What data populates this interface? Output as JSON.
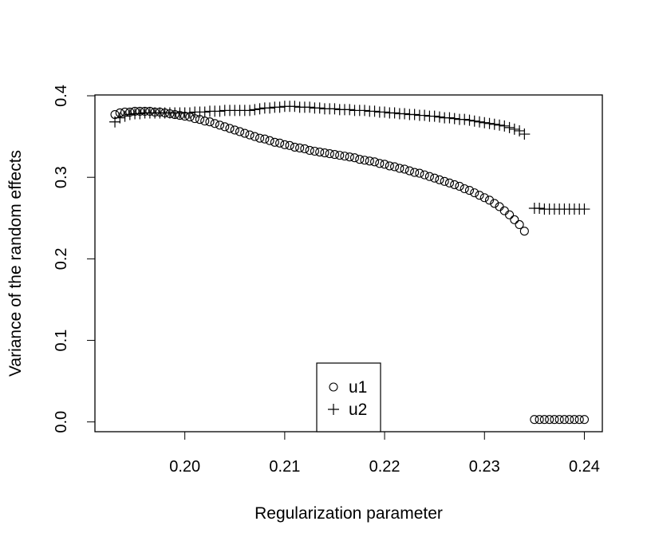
{
  "chart_data": {
    "type": "scatter",
    "title": "",
    "xlabel": "Regularization parameter",
    "ylabel": "Variance of the random effects",
    "xlim": [
      0.191,
      0.2418
    ],
    "ylim": [
      -0.012,
      0.401
    ],
    "x_ticks": [
      0.2,
      0.21,
      0.22,
      0.23,
      0.24
    ],
    "x_tick_labels": [
      "0.20",
      "0.21",
      "0.22",
      "0.23",
      "0.24"
    ],
    "y_ticks": [
      0.0,
      0.1,
      0.2,
      0.3,
      0.4
    ],
    "y_tick_labels": [
      "0.0",
      "0.1",
      "0.2",
      "0.3",
      "0.4"
    ],
    "grid": false,
    "legend_position": "bottom-center",
    "series": [
      {
        "name": "u1",
        "marker": "circle",
        "points": [
          [
            0.193,
            0.377
          ],
          [
            0.1935,
            0.379
          ],
          [
            0.194,
            0.38
          ],
          [
            0.1945,
            0.38
          ],
          [
            0.195,
            0.381
          ],
          [
            0.1955,
            0.381
          ],
          [
            0.196,
            0.381
          ],
          [
            0.1965,
            0.381
          ],
          [
            0.197,
            0.38
          ],
          [
            0.1975,
            0.38
          ],
          [
            0.198,
            0.379
          ],
          [
            0.1985,
            0.378
          ],
          [
            0.199,
            0.377
          ],
          [
            0.1995,
            0.376
          ],
          [
            0.2,
            0.375
          ],
          [
            0.2005,
            0.374
          ],
          [
            0.201,
            0.372
          ],
          [
            0.2015,
            0.371
          ],
          [
            0.202,
            0.369
          ],
          [
            0.2025,
            0.368
          ],
          [
            0.203,
            0.366
          ],
          [
            0.2035,
            0.364
          ],
          [
            0.204,
            0.362
          ],
          [
            0.2045,
            0.36
          ],
          [
            0.205,
            0.358
          ],
          [
            0.2055,
            0.356
          ],
          [
            0.206,
            0.354
          ],
          [
            0.2065,
            0.352
          ],
          [
            0.207,
            0.35
          ],
          [
            0.2075,
            0.348
          ],
          [
            0.208,
            0.347
          ],
          [
            0.2085,
            0.345
          ],
          [
            0.209,
            0.343
          ],
          [
            0.2095,
            0.342
          ],
          [
            0.21,
            0.34
          ],
          [
            0.2105,
            0.339
          ],
          [
            0.211,
            0.337
          ],
          [
            0.2115,
            0.336
          ],
          [
            0.212,
            0.335
          ],
          [
            0.2125,
            0.333
          ],
          [
            0.213,
            0.332
          ],
          [
            0.2135,
            0.331
          ],
          [
            0.214,
            0.33
          ],
          [
            0.2145,
            0.329
          ],
          [
            0.215,
            0.328
          ],
          [
            0.2155,
            0.327
          ],
          [
            0.216,
            0.326
          ],
          [
            0.2165,
            0.325
          ],
          [
            0.217,
            0.324
          ],
          [
            0.2175,
            0.322
          ],
          [
            0.218,
            0.321
          ],
          [
            0.2185,
            0.32
          ],
          [
            0.219,
            0.319
          ],
          [
            0.2195,
            0.317
          ],
          [
            0.22,
            0.316
          ],
          [
            0.2205,
            0.314
          ],
          [
            0.221,
            0.313
          ],
          [
            0.2215,
            0.311
          ],
          [
            0.222,
            0.31
          ],
          [
            0.2225,
            0.308
          ],
          [
            0.223,
            0.306
          ],
          [
            0.2235,
            0.305
          ],
          [
            0.224,
            0.303
          ],
          [
            0.2245,
            0.301
          ],
          [
            0.225,
            0.299
          ],
          [
            0.2255,
            0.297
          ],
          [
            0.226,
            0.295
          ],
          [
            0.2265,
            0.293
          ],
          [
            0.227,
            0.291
          ],
          [
            0.2275,
            0.289
          ],
          [
            0.228,
            0.286
          ],
          [
            0.2285,
            0.284
          ],
          [
            0.229,
            0.281
          ],
          [
            0.2295,
            0.278
          ],
          [
            0.23,
            0.275
          ],
          [
            0.2305,
            0.272
          ],
          [
            0.231,
            0.268
          ],
          [
            0.2315,
            0.264
          ],
          [
            0.232,
            0.259
          ],
          [
            0.2325,
            0.254
          ],
          [
            0.233,
            0.248
          ],
          [
            0.2335,
            0.242
          ],
          [
            0.234,
            0.234
          ],
          [
            0.235,
            0.003
          ],
          [
            0.2355,
            0.003
          ],
          [
            0.236,
            0.003
          ],
          [
            0.2365,
            0.003
          ],
          [
            0.237,
            0.003
          ],
          [
            0.2375,
            0.003
          ],
          [
            0.238,
            0.003
          ],
          [
            0.2385,
            0.003
          ],
          [
            0.239,
            0.003
          ],
          [
            0.2395,
            0.003
          ],
          [
            0.24,
            0.003
          ]
        ]
      },
      {
        "name": "u2",
        "marker": "plus",
        "points": [
          [
            0.193,
            0.368
          ],
          [
            0.1935,
            0.373
          ],
          [
            0.194,
            0.375
          ],
          [
            0.1945,
            0.377
          ],
          [
            0.195,
            0.378
          ],
          [
            0.1955,
            0.378
          ],
          [
            0.196,
            0.379
          ],
          [
            0.1965,
            0.379
          ],
          [
            0.197,
            0.379
          ],
          [
            0.1975,
            0.379
          ],
          [
            0.198,
            0.379
          ],
          [
            0.1985,
            0.379
          ],
          [
            0.199,
            0.379
          ],
          [
            0.1995,
            0.379
          ],
          [
            0.2,
            0.379
          ],
          [
            0.2005,
            0.379
          ],
          [
            0.201,
            0.38
          ],
          [
            0.2015,
            0.38
          ],
          [
            0.202,
            0.38
          ],
          [
            0.2025,
            0.381
          ],
          [
            0.203,
            0.381
          ],
          [
            0.2035,
            0.381
          ],
          [
            0.204,
            0.382
          ],
          [
            0.2045,
            0.382
          ],
          [
            0.205,
            0.382
          ],
          [
            0.2055,
            0.382
          ],
          [
            0.206,
            0.382
          ],
          [
            0.2065,
            0.382
          ],
          [
            0.207,
            0.383
          ],
          [
            0.2075,
            0.384
          ],
          [
            0.208,
            0.385
          ],
          [
            0.2085,
            0.385
          ],
          [
            0.209,
            0.386
          ],
          [
            0.2095,
            0.386
          ],
          [
            0.21,
            0.387
          ],
          [
            0.2105,
            0.387
          ],
          [
            0.211,
            0.387
          ],
          [
            0.2115,
            0.386
          ],
          [
            0.212,
            0.386
          ],
          [
            0.2125,
            0.386
          ],
          [
            0.213,
            0.385
          ],
          [
            0.2135,
            0.385
          ],
          [
            0.214,
            0.384
          ],
          [
            0.2145,
            0.384
          ],
          [
            0.215,
            0.384
          ],
          [
            0.2155,
            0.383
          ],
          [
            0.216,
            0.383
          ],
          [
            0.2165,
            0.383
          ],
          [
            0.217,
            0.382
          ],
          [
            0.2175,
            0.382
          ],
          [
            0.218,
            0.382
          ],
          [
            0.2185,
            0.381
          ],
          [
            0.219,
            0.381
          ],
          [
            0.2195,
            0.38
          ],
          [
            0.22,
            0.38
          ],
          [
            0.2205,
            0.379
          ],
          [
            0.221,
            0.379
          ],
          [
            0.2215,
            0.378
          ],
          [
            0.222,
            0.378
          ],
          [
            0.2225,
            0.377
          ],
          [
            0.223,
            0.377
          ],
          [
            0.2235,
            0.376
          ],
          [
            0.224,
            0.376
          ],
          [
            0.2245,
            0.375
          ],
          [
            0.225,
            0.375
          ],
          [
            0.2255,
            0.374
          ],
          [
            0.226,
            0.373
          ],
          [
            0.2265,
            0.373
          ],
          [
            0.227,
            0.372
          ],
          [
            0.2275,
            0.371
          ],
          [
            0.228,
            0.371
          ],
          [
            0.2285,
            0.37
          ],
          [
            0.229,
            0.369
          ],
          [
            0.2295,
            0.368
          ],
          [
            0.23,
            0.367
          ],
          [
            0.2305,
            0.366
          ],
          [
            0.231,
            0.365
          ],
          [
            0.2315,
            0.364
          ],
          [
            0.232,
            0.363
          ],
          [
            0.2325,
            0.361
          ],
          [
            0.233,
            0.359
          ],
          [
            0.2335,
            0.357
          ],
          [
            0.234,
            0.353
          ],
          [
            0.235,
            0.262
          ],
          [
            0.2355,
            0.262
          ],
          [
            0.236,
            0.261
          ],
          [
            0.2365,
            0.261
          ],
          [
            0.237,
            0.261
          ],
          [
            0.2375,
            0.261
          ],
          [
            0.238,
            0.261
          ],
          [
            0.2385,
            0.261
          ],
          [
            0.239,
            0.261
          ],
          [
            0.2395,
            0.261
          ],
          [
            0.24,
            0.261
          ]
        ]
      }
    ]
  }
}
